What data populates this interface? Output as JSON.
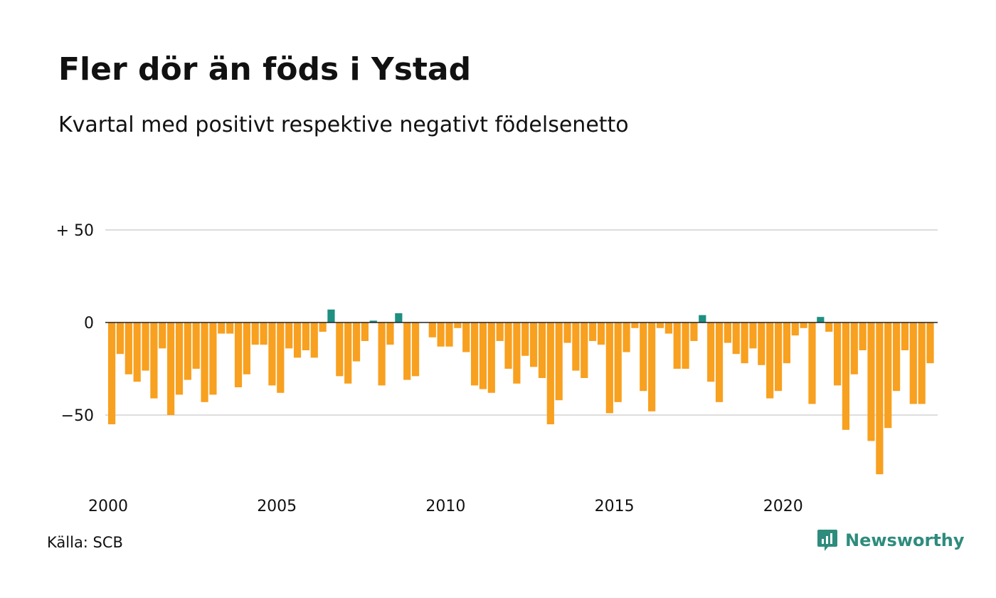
{
  "title": "Fler dör än föds i Ystad",
  "subtitle": "Kvartal med positivt respektive negativt födelsenetto",
  "source": "Källa: SCB",
  "brand": {
    "name": "Newsworthy",
    "icon": "newsworthy-logo-icon"
  },
  "colors": {
    "negative": "#F8A01F",
    "positive": "#1E8F80",
    "grid": "#dddddd",
    "zero_line": "#222222"
  },
  "chart_data": {
    "type": "bar",
    "ylim": [
      -85,
      55
    ],
    "yticks": [
      {
        "value": 50,
        "label": "+ 50"
      },
      {
        "value": 0,
        "label": "0"
      },
      {
        "value": -50,
        "label": "−50"
      }
    ],
    "xticks": [
      {
        "year": 2000,
        "label": "2000"
      },
      {
        "year": 2005,
        "label": "2005"
      },
      {
        "year": 2010,
        "label": "2010"
      },
      {
        "year": 2015,
        "label": "2015"
      },
      {
        "year": 2020,
        "label": "2020"
      }
    ],
    "start_year": 2000,
    "periods_per_year": 4,
    "values": [
      -55,
      -17,
      -28,
      -32,
      -26,
      -41,
      -14,
      -50,
      -39,
      -31,
      -25,
      -43,
      -39,
      -6,
      -6,
      -35,
      -28,
      -12,
      -12,
      -34,
      -38,
      -14,
      -19,
      -15,
      -19,
      -5,
      7,
      -29,
      -33,
      -21,
      -10,
      1,
      -34,
      -12,
      5,
      -31,
      -29,
      0,
      -8,
      -13,
      -13,
      -3,
      -16,
      -34,
      -36,
      -38,
      -10,
      -25,
      -33,
      -18,
      -24,
      -30,
      -55,
      -42,
      -11,
      -26,
      -30,
      -10,
      -12,
      -49,
      -43,
      -16,
      -3,
      -37,
      -48,
      -3,
      -6,
      -25,
      -25,
      -10,
      4,
      -32,
      -43,
      -11,
      -17,
      -22,
      -14,
      -23,
      -41,
      -37,
      -22,
      -7,
      -3,
      -44,
      3,
      -5,
      -34,
      -58,
      -28,
      -15,
      -64,
      -82,
      -57,
      -37,
      -15,
      -44,
      -44,
      -22
    ]
  }
}
